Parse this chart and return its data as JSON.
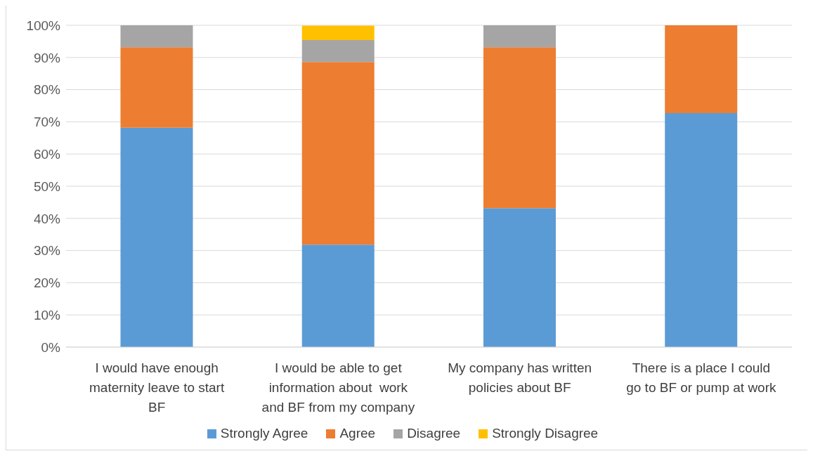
{
  "chart_data": {
    "type": "bar",
    "stacked": true,
    "categories": [
      "I would have enough maternity leave to start BF",
      "I would be able to get information about  work and BF from my company",
      "My company has written policies about BF",
      "There is a place I could go to BF or pump at work"
    ],
    "series": [
      {
        "name": "Strongly Agree",
        "color": "#5b9bd5",
        "values": [
          68.2,
          31.8,
          43.2,
          72.7
        ]
      },
      {
        "name": "Agree",
        "color": "#ed7d31",
        "values": [
          25.0,
          56.8,
          50.0,
          27.3
        ]
      },
      {
        "name": "Disagree",
        "color": "#a5a5a5",
        "values": [
          6.8,
          6.8,
          6.8,
          0
        ]
      },
      {
        "name": "Strongly Disagree",
        "color": "#ffc000",
        "values": [
          0,
          4.5,
          0,
          0
        ]
      }
    ],
    "ylim": [
      0,
      100
    ],
    "yticks": [
      {
        "value": 0,
        "label": "0%"
      },
      {
        "value": 10,
        "label": "10%"
      },
      {
        "value": 20,
        "label": "20%"
      },
      {
        "value": 30,
        "label": "30%"
      },
      {
        "value": 40,
        "label": "40%"
      },
      {
        "value": 50,
        "label": "50%"
      },
      {
        "value": 60,
        "label": "60%"
      },
      {
        "value": 70,
        "label": "70%"
      },
      {
        "value": 80,
        "label": "80%"
      },
      {
        "value": 90,
        "label": "90%"
      },
      {
        "value": 100,
        "label": "100%"
      }
    ],
    "grid": "y",
    "legend": "bottom"
  }
}
